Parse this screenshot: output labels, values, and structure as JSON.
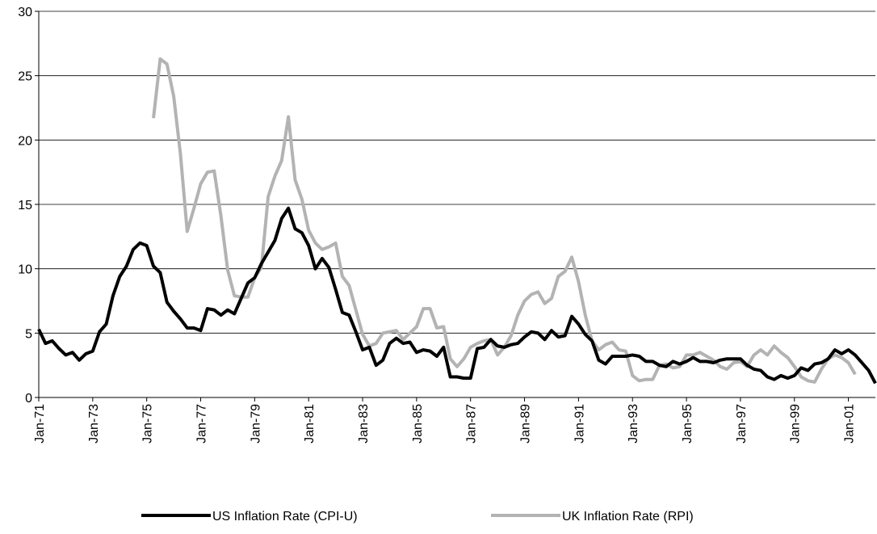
{
  "chart_data": {
    "type": "line",
    "categories": [
      "Jan-71",
      null,
      null,
      null,
      null,
      null,
      null,
      null,
      "Jan-73",
      null,
      null,
      null,
      null,
      null,
      null,
      null,
      "Jan-75",
      null,
      null,
      null,
      null,
      null,
      null,
      null,
      "Jan-77",
      null,
      null,
      null,
      null,
      null,
      null,
      null,
      "Jan-79",
      null,
      null,
      null,
      null,
      null,
      null,
      null,
      "Jan-81",
      null,
      null,
      null,
      null,
      null,
      null,
      null,
      "Jan-83",
      null,
      null,
      null,
      null,
      null,
      null,
      null,
      "Jan-85",
      null,
      null,
      null,
      null,
      null,
      null,
      null,
      "Jan-87",
      null,
      null,
      null,
      null,
      null,
      null,
      null,
      "Jan-89",
      null,
      null,
      null,
      null,
      null,
      null,
      null,
      "Jan-91",
      null,
      null,
      null,
      null,
      null,
      null,
      null,
      "Jan-93",
      null,
      null,
      null,
      null,
      null,
      null,
      null,
      "Jan-95",
      null,
      null,
      null,
      null,
      null,
      null,
      null,
      "Jan-97",
      null,
      null,
      null,
      null,
      null,
      null,
      null,
      "Jan-99",
      null,
      null,
      null,
      null,
      null,
      null,
      null,
      "Jan-01",
      null,
      null,
      null,
      null
    ],
    "series": [
      {
        "name": "US Inflation Rate (CPI-U)",
        "color": "#000000",
        "values": [
          5.3,
          4.2,
          4.4,
          3.8,
          3.3,
          3.5,
          2.9,
          3.4,
          3.6,
          5.1,
          5.7,
          7.9,
          9.4,
          10.2,
          11.5,
          12.0,
          11.8,
          10.2,
          9.7,
          7.4,
          6.7,
          6.1,
          5.4,
          5.4,
          5.2,
          6.9,
          6.8,
          6.4,
          6.8,
          6.5,
          7.7,
          8.9,
          9.3,
          10.4,
          11.3,
          12.2,
          13.9,
          14.7,
          13.1,
          12.8,
          11.8,
          10.0,
          10.8,
          10.1,
          8.4,
          6.6,
          6.4,
          5.1,
          3.7,
          3.9,
          2.5,
          2.9,
          4.2,
          4.6,
          4.2,
          4.3,
          3.5,
          3.7,
          3.6,
          3.2,
          3.9,
          1.6,
          1.6,
          1.5,
          1.5,
          3.8,
          3.9,
          4.5,
          4.0,
          3.9,
          4.1,
          4.2,
          4.7,
          5.1,
          5.0,
          4.5,
          5.2,
          4.7,
          4.8,
          6.3,
          5.7,
          4.9,
          4.4,
          2.9,
          2.6,
          3.2,
          3.2,
          3.2,
          3.3,
          3.2,
          2.8,
          2.8,
          2.5,
          2.4,
          2.8,
          2.6,
          2.8,
          3.1,
          2.8,
          2.8,
          2.7,
          2.9,
          3.0,
          3.0,
          3.0,
          2.5,
          2.2,
          2.1,
          1.6,
          1.4,
          1.7,
          1.5,
          1.7,
          2.3,
          2.1,
          2.6,
          2.7,
          3.0,
          3.7,
          3.4,
          3.7,
          3.3,
          2.7,
          2.1,
          1.1
        ]
      },
      {
        "name": "UK Inflation Rate (RPI)",
        "color": "#b3b3b3",
        "values": [
          null,
          null,
          null,
          null,
          null,
          null,
          null,
          null,
          null,
          null,
          null,
          null,
          null,
          null,
          null,
          null,
          null,
          21.7,
          26.3,
          25.9,
          23.4,
          18.9,
          12.9,
          14.7,
          16.6,
          17.5,
          17.6,
          14.1,
          9.9,
          7.9,
          7.8,
          7.8,
          9.3,
          10.1,
          15.6,
          17.2,
          18.4,
          21.8,
          16.9,
          15.4,
          13.0,
          12.0,
          11.5,
          11.7,
          12.0,
          9.4,
          8.7,
          6.8,
          4.9,
          4.0,
          4.2,
          5.0,
          5.1,
          5.2,
          4.5,
          5.0,
          5.5,
          6.9,
          6.9,
          5.4,
          5.5,
          3.0,
          2.4,
          3.0,
          3.9,
          4.2,
          4.4,
          4.5,
          3.3,
          3.9,
          4.8,
          6.4,
          7.5,
          8.0,
          8.2,
          7.3,
          7.7,
          9.4,
          9.8,
          10.9,
          9.0,
          6.4,
          4.4,
          3.7,
          4.1,
          4.3,
          3.7,
          3.6,
          1.7,
          1.3,
          1.4,
          1.4,
          2.5,
          2.6,
          2.3,
          2.4,
          3.3,
          3.3,
          3.5,
          3.2,
          2.9,
          2.4,
          2.2,
          2.7,
          2.8,
          2.4,
          3.3,
          3.7,
          3.3,
          4.0,
          3.5,
          3.1,
          2.4,
          1.6,
          1.3,
          1.2,
          2.2,
          3.0,
          3.3,
          3.1,
          2.7,
          1.8,
          null,
          null,
          null
        ]
      }
    ],
    "ylim": [
      0,
      30
    ],
    "yticks": [
      0,
      5,
      10,
      15,
      20,
      25,
      30
    ],
    "grid": true,
    "legend": "bottom"
  }
}
